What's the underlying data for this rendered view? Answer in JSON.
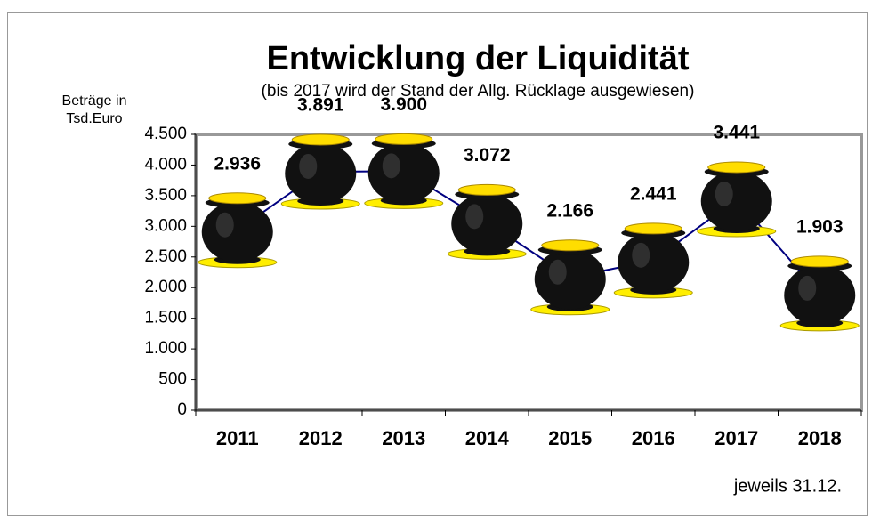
{
  "chart_data": {
    "type": "line",
    "title": "Entwicklung der Liquidität",
    "subtitle": "(bis 2017 wird der Stand der Allg. Rücklage ausgewiesen)",
    "y_label_lines": [
      "Beträge in",
      "Tsd.Euro"
    ],
    "annotation": "jeweils 31.12.",
    "categories": [
      "2011",
      "2012",
      "2013",
      "2014",
      "2015",
      "2016",
      "2017",
      "2018"
    ],
    "values": [
      2936,
      3891,
      3900,
      3072,
      2166,
      2441,
      3441,
      1903
    ],
    "value_labels": [
      "2.936",
      "3.891",
      "3.900",
      "3.072",
      "2.166",
      "2.441",
      "3.441",
      "1.903"
    ],
    "color": "#000080",
    "ylim": [
      0,
      4500
    ],
    "yticks": [
      0,
      500,
      {
        "value": 1000,
        "label": "1.000"
      },
      {
        "value": 1500,
        "label": "1.500"
      },
      {
        "value": 2000,
        "label": "2.000"
      },
      {
        "value": 2500,
        "label": "2.500"
      },
      {
        "value": 3000,
        "label": "3.000"
      },
      {
        "value": 3500,
        "label": "3.500"
      },
      {
        "value": 4000,
        "label": "4.000"
      },
      {
        "value": 4500,
        "label": "4.500"
      }
    ],
    "grid": false
  }
}
